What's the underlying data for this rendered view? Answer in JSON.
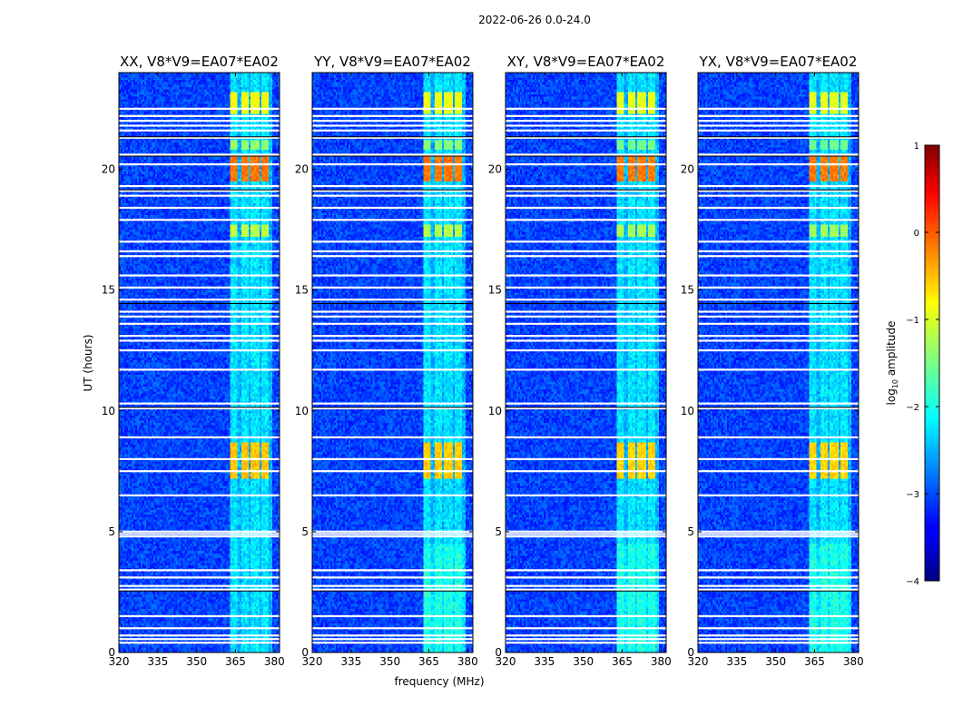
{
  "figure": {
    "suptitle": "2022-06-26 0.0-24.0",
    "xlabel": "frequency (MHz)",
    "ylabel": "UT (hours)"
  },
  "chart_data": {
    "type": "heatmap",
    "xlim": [
      320,
      382
    ],
    "ylim": [
      0,
      24
    ],
    "xticks": [
      320,
      335,
      350,
      365,
      380
    ],
    "yticks": [
      0,
      5,
      10,
      15,
      20
    ],
    "panels": [
      {
        "title": "XX, V8*V9=EA07*EA02",
        "intensity": 1.0
      },
      {
        "title": "YY, V8*V9=EA07*EA02",
        "intensity": 0.95
      },
      {
        "title": "XY, V8*V9=EA07*EA02",
        "intensity": 0.85
      },
      {
        "title": "YX, V8*V9=EA07*EA02",
        "intensity": 0.8
      }
    ],
    "colorbar": {
      "label": "log10 amplitude",
      "label_main": "log",
      "label_sub": "10",
      "label_rest": " amplitude",
      "range": [
        -4,
        1
      ],
      "ticks": [
        "1",
        "0",
        "−1",
        "−2",
        "−3",
        "−4"
      ],
      "tick_values": [
        1,
        0,
        -1,
        -2,
        -3,
        -4
      ],
      "colormap": "jet"
    },
    "flagged_hours": [
      0.4,
      0.55,
      0.7,
      1.0,
      1.5,
      2.6,
      2.75,
      3.1,
      3.4,
      4.8,
      4.9,
      5.0,
      6.5,
      7.5,
      8.0,
      8.9,
      10.1,
      10.3,
      11.7,
      12.5,
      12.9,
      13.1,
      13.6,
      13.9,
      14.1,
      14.6,
      15.1,
      15.6,
      16.4,
      16.6,
      17.0,
      17.9,
      18.4,
      18.9,
      19.1,
      19.3,
      20.2,
      20.6,
      21.3,
      21.6,
      21.8,
      22.0,
      22.2,
      22.5
    ],
    "band_channels_mhz": [
      364.5,
      368.5,
      372.5,
      376.5
    ],
    "bright_episodes_hours": [
      [
        19.5,
        20.6,
        -0.2
      ],
      [
        17.2,
        17.7,
        -1.2
      ],
      [
        20.8,
        21.2,
        -1.4
      ],
      [
        22.3,
        23.2,
        -0.9
      ],
      [
        7.2,
        8.7,
        -0.6
      ]
    ]
  }
}
